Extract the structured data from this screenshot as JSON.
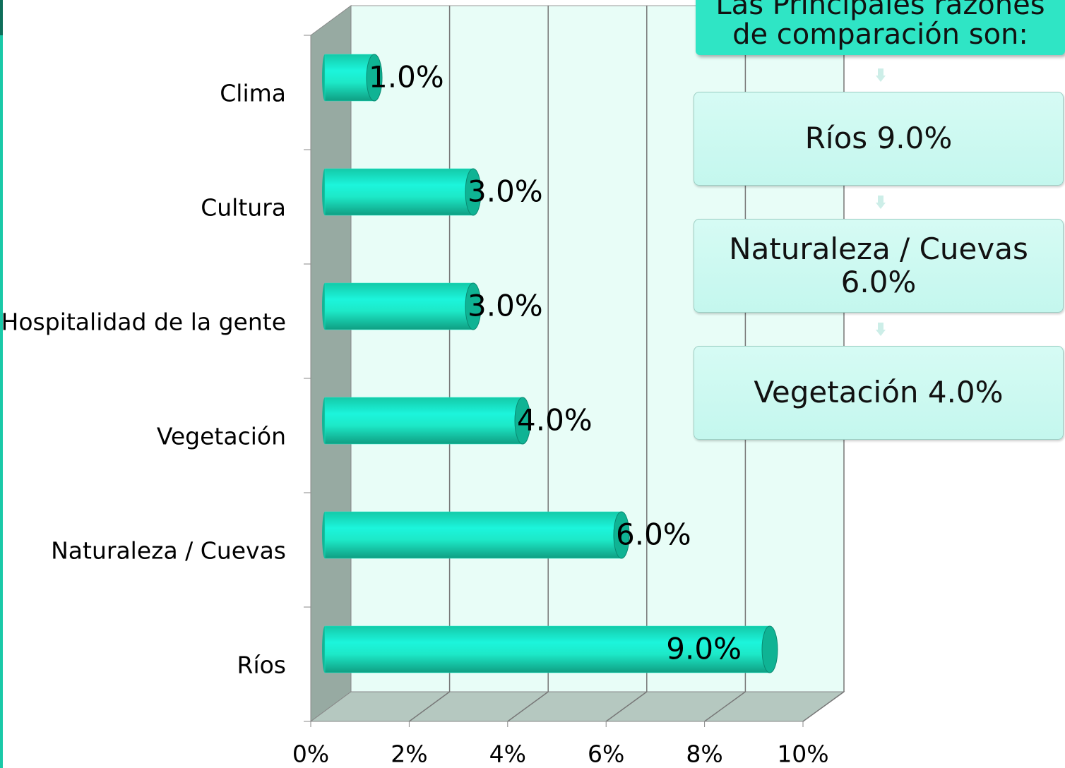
{
  "chart_data": {
    "type": "bar",
    "orientation": "horizontal",
    "categories": [
      "Clima",
      "Cultura",
      "Hospitalidad de la gente",
      "Vegetación",
      "Naturaleza / Cuevas",
      "Ríos"
    ],
    "values": [
      1,
      3,
      3,
      4,
      6,
      9
    ],
    "value_labels": [
      "1.0%",
      "3.0%",
      "3.0%",
      "4.0%",
      "6.0%",
      "9.0%"
    ],
    "color": "#1de9c8",
    "xlim": [
      0,
      10
    ],
    "xticks": [
      {
        "value": 0,
        "label": "0%"
      },
      {
        "value": 2,
        "label": "2%"
      },
      {
        "value": 4,
        "label": "4%"
      },
      {
        "value": 6,
        "label": "6%"
      },
      {
        "value": 8,
        "label": "8%"
      },
      {
        "value": 10,
        "label": "10%"
      }
    ],
    "grid": true
  },
  "panel": {
    "title": "Las Principales razones de comparación son:",
    "items": [
      "Ríos 9.0%",
      "Naturaleza / Cuevas 6.0%",
      "Vegetación 4.0%"
    ]
  }
}
